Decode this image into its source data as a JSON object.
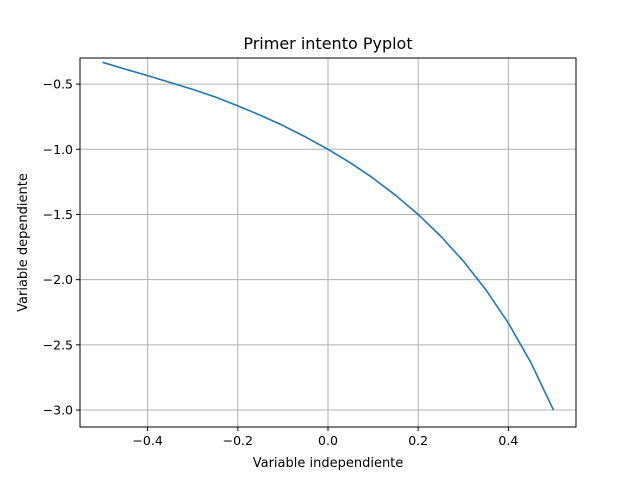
{
  "chart_data": {
    "type": "line",
    "title": "Primer intento Pyplot",
    "xlabel": "Variable independiente",
    "ylabel": "Variable dependiente",
    "xlim": [
      -0.55,
      0.55
    ],
    "ylim": [
      -3.13,
      -0.3
    ],
    "xticks": [
      -0.4,
      -0.2,
      0.0,
      0.2,
      0.4
    ],
    "xtick_labels": [
      "−0.4",
      "−0.2",
      "0.0",
      "0.2",
      "0.4"
    ],
    "yticks": [
      -0.5,
      -1.0,
      -1.5,
      -2.0,
      -2.5,
      -3.0
    ],
    "ytick_labels": [
      "−0.5",
      "−1.0",
      "−1.5",
      "−2.0",
      "−2.5",
      "−3.0"
    ],
    "grid": true,
    "series": [
      {
        "color": "#1f77b4",
        "x": [
          -0.5,
          -0.45,
          -0.4,
          -0.35,
          -0.3,
          -0.25,
          -0.2,
          -0.15,
          -0.1,
          -0.05,
          0.0,
          0.05,
          0.1,
          0.15,
          0.2,
          0.25,
          0.3,
          0.35,
          0.4,
          0.45,
          0.5
        ],
        "y": [
          -0.333,
          -0.385,
          -0.435,
          -0.488,
          -0.541,
          -0.599,
          -0.667,
          -0.739,
          -0.818,
          -0.905,
          -1.0,
          -1.105,
          -1.222,
          -1.353,
          -1.5,
          -1.667,
          -1.857,
          -2.077,
          -2.333,
          -2.636,
          -3.0
        ]
      }
    ]
  },
  "colors": {
    "background": "#ffffff",
    "grid": "#b0b0b0",
    "axes": "#000000",
    "line": "#1f77b4"
  }
}
